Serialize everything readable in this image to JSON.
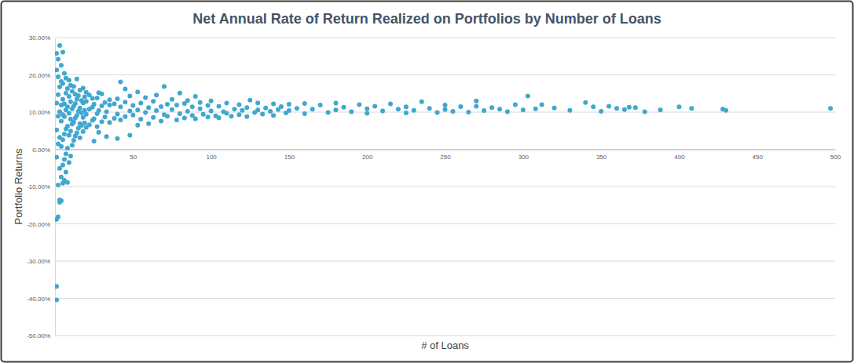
{
  "chart_data": {
    "type": "scatter",
    "title": "Net Annual Rate of Return Realized on Portfolios by Number of Loans",
    "x_label": "# of Loans",
    "y_label": "Portfolio Returns",
    "color": "#41a7cf",
    "marker": "circle",
    "grid": true,
    "xlim": [
      0,
      500
    ],
    "xticks": [
      50,
      100,
      150,
      200,
      250,
      300,
      350,
      400,
      450,
      500
    ],
    "ylim": [
      -50,
      30
    ],
    "yticks": [
      {
        "value": -50,
        "label": "-50.00%"
      },
      {
        "value": -40,
        "label": "-40.00%"
      },
      {
        "value": -30,
        "label": "-30.00%"
      },
      {
        "value": -20,
        "label": "-20.00%"
      },
      {
        "value": -10,
        "label": "-10.00%"
      },
      {
        "value": 0,
        "label": "0.00%"
      },
      {
        "value": 10,
        "label": "10.00%"
      },
      {
        "value": 20,
        "label": "20.00%"
      },
      {
        "value": 30,
        "label": "30.00%"
      }
    ],
    "x": [
      1,
      1,
      1,
      1,
      1,
      1,
      1,
      1,
      2,
      2,
      2,
      2,
      2,
      2,
      2,
      3,
      3,
      3,
      3,
      3,
      3,
      3,
      4,
      4,
      4,
      4,
      4,
      4,
      4,
      5,
      5,
      5,
      5,
      5,
      5,
      5,
      6,
      6,
      6,
      6,
      6,
      6,
      7,
      7,
      7,
      7,
      7,
      7,
      8,
      8,
      8,
      8,
      8,
      9,
      9,
      9,
      9,
      9,
      10,
      10,
      10,
      10,
      10,
      11,
      11,
      11,
      11,
      12,
      12,
      12,
      12,
      13,
      13,
      13,
      13,
      14,
      14,
      14,
      14,
      15,
      15,
      15,
      16,
      16,
      16,
      16,
      17,
      17,
      17,
      18,
      18,
      18,
      18,
      19,
      19,
      19,
      20,
      20,
      20,
      20,
      22,
      22,
      22,
      24,
      24,
      24,
      25,
      25,
      25,
      27,
      27,
      27,
      28,
      28,
      28,
      30,
      30,
      30,
      32,
      32,
      33,
      33,
      35,
      35,
      35,
      38,
      38,
      40,
      40,
      40,
      42,
      42,
      42,
      45,
      45,
      45,
      48,
      48,
      48,
      50,
      50,
      53,
      53,
      53,
      55,
      55,
      58,
      58,
      60,
      60,
      63,
      63,
      65,
      65,
      68,
      68,
      70,
      70,
      72,
      72,
      75,
      75,
      78,
      78,
      80,
      80,
      83,
      83,
      85,
      85,
      88,
      88,
      90,
      90,
      93,
      93,
      95,
      98,
      98,
      100,
      100,
      103,
      105,
      105,
      108,
      110,
      110,
      113,
      115,
      118,
      118,
      120,
      123,
      123,
      125,
      128,
      130,
      130,
      133,
      135,
      138,
      140,
      140,
      143,
      145,
      148,
      150,
      150,
      155,
      160,
      160,
      165,
      170,
      175,
      180,
      180,
      185,
      190,
      195,
      200,
      200,
      205,
      210,
      215,
      220,
      225,
      225,
      230,
      235,
      240,
      245,
      250,
      250,
      255,
      260,
      265,
      270,
      270,
      275,
      280,
      285,
      290,
      295,
      300,
      303,
      308,
      312,
      320,
      330,
      340,
      345,
      350,
      355,
      360,
      365,
      368,
      372,
      378,
      388,
      400,
      408,
      428,
      430,
      497
    ],
    "values": [
      -40.4,
      -36.8,
      -18.8,
      -2.1,
      5.2,
      12.4,
      21.3,
      25.8,
      -18.1,
      -9.6,
      1.5,
      8.9,
      14.7,
      19.5,
      24.2,
      -14.2,
      -13.6,
      -5.1,
      3.2,
      10.1,
      16.8,
      27.9,
      -13.8,
      -7.4,
      0.8,
      7.6,
      11.9,
      18.2,
      22.6,
      -9.1,
      -4.2,
      2.6,
      9.3,
      13.4,
      17.7,
      26.1,
      -8.3,
      -2.7,
      4.1,
      8.8,
      12.2,
      20.4,
      -6.1,
      -1.2,
      5.5,
      10.6,
      15.1,
      19.1,
      -8.9,
      0.3,
      6.2,
      11.4,
      16.3,
      -3.5,
      3.8,
      9.7,
      14.2,
      18.6,
      -1.8,
      4.9,
      8.1,
      12.8,
      17.2,
      1.1,
      6.8,
      10.9,
      15.6,
      2.4,
      7.3,
      11.6,
      16.9,
      3.6,
      8.4,
      12.3,
      14.8,
      4.4,
      9.1,
      13.5,
      18.9,
      5.7,
      10.2,
      14.4,
      3.1,
      6.9,
      11.1,
      15.9,
      6.4,
      9.8,
      13.1,
      4.8,
      8.6,
      12.5,
      16.4,
      7.1,
      10.5,
      14.1,
      5.9,
      9.4,
      12.9,
      15.3,
      6.6,
      10.8,
      14.6,
      7.8,
      11.3,
      13.7,
      2.2,
      8.2,
      12.1,
      6.1,
      9.6,
      13.8,
      4.6,
      10.4,
      15.2,
      7.4,
      11.7,
      14.9,
      8.7,
      12.6,
      3.4,
      10.1,
      7.2,
      11.9,
      13.3,
      8.3,
      12.2,
      2.9,
      9.5,
      13.6,
      18.1,
      7.9,
      11.4,
      8.8,
      12.7,
      16.2,
      3.8,
      10.3,
      14.3,
      9.2,
      11.8,
      6.5,
      10.6,
      15.4,
      8.1,
      12.4,
      9.9,
      13.9,
      6.9,
      11.2,
      8.6,
      12.9,
      10.4,
      14.6,
      7.6,
      11.5,
      9.3,
      16.9,
      8.9,
      12.1,
      10.7,
      13.4,
      7.9,
      11.9,
      9.6,
      15.1,
      8.4,
      12.3,
      10.2,
      13.1,
      9.1,
      11.4,
      8.2,
      14.2,
      10.9,
      12.6,
      9.4,
      8.7,
      11.8,
      10.3,
      13.0,
      9.0,
      11.6,
      8.5,
      10.1,
      12.4,
      9.7,
      8.9,
      10.8,
      12.0,
      9.3,
      10.5,
      11.2,
      8.8,
      13.2,
      9.9,
      10.6,
      12.5,
      9.5,
      11.1,
      10.2,
      12.2,
      9.1,
      10.7,
      11.5,
      9.8,
      10.4,
      12.1,
      11.0,
      9.6,
      12.3,
      10.8,
      11.9,
      9.9,
      10.6,
      12.4,
      11.3,
      10.1,
      12.0,
      10.9,
      9.7,
      11.6,
      10.3,
      12.2,
      10.8,
      9.8,
      11.4,
      10.5,
      12.8,
      11.0,
      9.9,
      10.7,
      11.9,
      10.2,
      11.5,
      10.0,
      13.0,
      11.6,
      10.4,
      11.2,
      10.8,
      10.1,
      12.0,
      10.6,
      14.3,
      10.9,
      12.0,
      11.1,
      10.5,
      12.6,
      11.4,
      10.2,
      11.6,
      11.0,
      10.7,
      11.3,
      11.2,
      10.1,
      10.6,
      11.4,
      11.0,
      10.8,
      10.5,
      11.0
    ]
  }
}
